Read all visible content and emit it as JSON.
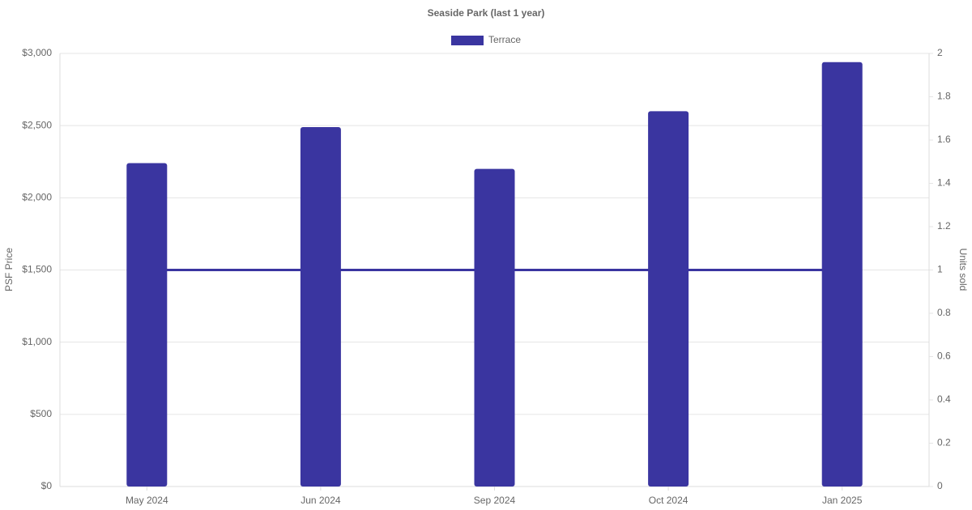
{
  "chart_data": {
    "type": "bar+line",
    "title": "Seaside Park (last 1 year)",
    "categories": [
      "May 2024",
      "Jun 2024",
      "Sep 2024",
      "Oct 2024",
      "Jan 2025"
    ],
    "series": [
      {
        "name": "Terrace",
        "type": "bar",
        "color": "#3a35a0",
        "values": [
          2240,
          2490,
          2200,
          2600,
          2940
        ]
      },
      {
        "type": "line",
        "axis": "y2",
        "color": "#3a35a0",
        "values": [
          1,
          1,
          1,
          1,
          1
        ]
      }
    ],
    "y_label": "PSF Price",
    "y2_label": "Units sold",
    "ylim": [
      0,
      3000
    ],
    "yticks": [
      {
        "value": 0,
        "label": "$0"
      },
      {
        "value": 500,
        "label": "$500"
      },
      {
        "value": 1000,
        "label": "$1,000"
      },
      {
        "value": 1500,
        "label": "$1,500"
      },
      {
        "value": 2000,
        "label": "$2,000"
      },
      {
        "value": 2500,
        "label": "$2,500"
      },
      {
        "value": 3000,
        "label": "$3,000"
      }
    ],
    "y2lim": [
      0,
      2
    ],
    "y2ticks": [
      0,
      0.2,
      0.4,
      0.6,
      0.8,
      1,
      1.2,
      1.4,
      1.6,
      1.8,
      2
    ],
    "grid": true,
    "legend": "top"
  }
}
